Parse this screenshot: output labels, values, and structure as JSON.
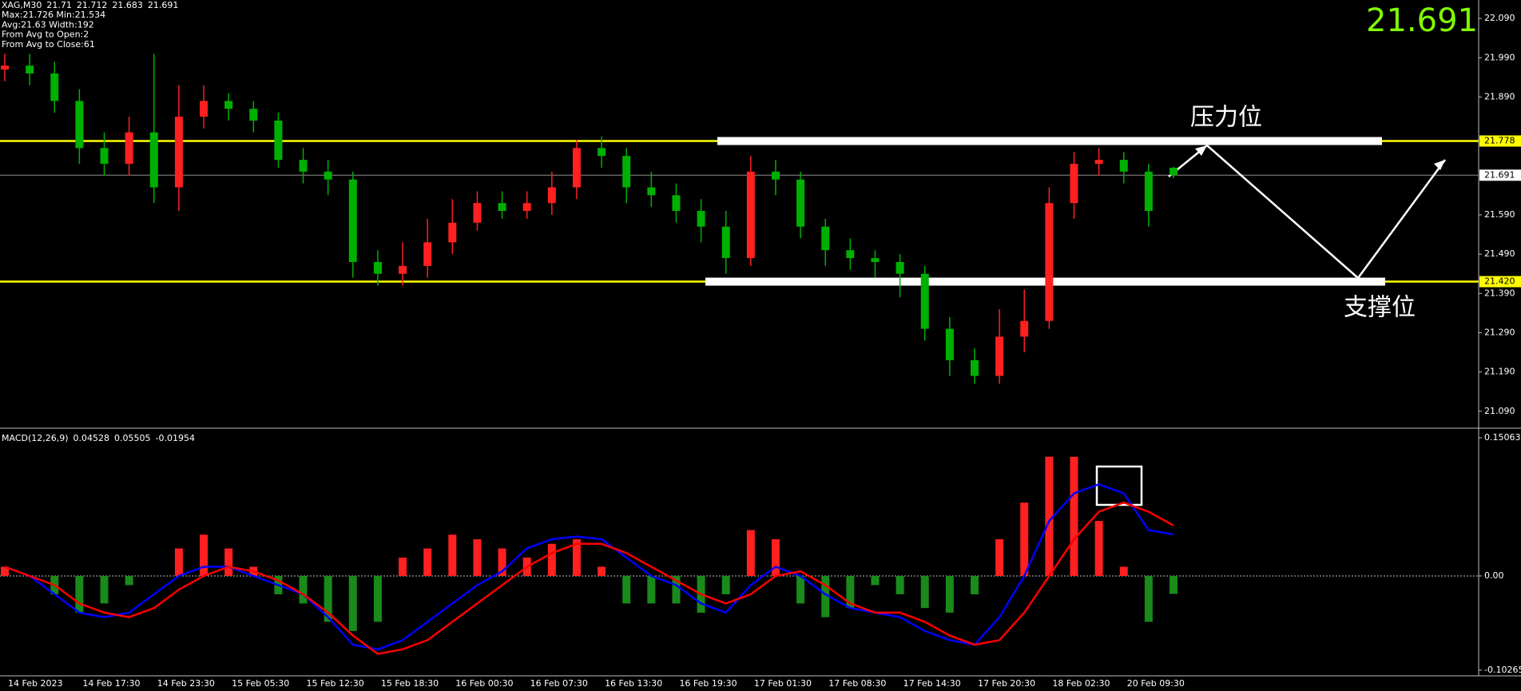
{
  "chart_data": [
    {
      "type": "candlestick",
      "title": "XAG,M30",
      "info": [
        "Max:21.726 Min:21.534",
        "Avg:21.63 Width:192",
        "From Avg to Open:2",
        "From Avg to Close:61"
      ],
      "categories": [
        "14 Feb 2023",
        null,
        null,
        "14 Feb 17:30",
        null,
        null,
        "14 Feb 23:30",
        null,
        null,
        "15 Feb 05:30",
        null,
        null,
        "15 Feb 12:30",
        null,
        null,
        "15 Feb 18:30",
        null,
        null,
        "16 Feb 00:30",
        null,
        null,
        "16 Feb 07:30",
        null,
        null,
        "16 Feb 13:30",
        null,
        null,
        "16 Feb 19:30",
        null,
        null,
        "17 Feb 01:30",
        null,
        null,
        "17 Feb 08:30",
        null,
        null,
        "17 Feb 14:30",
        null,
        null,
        "17 Feb 20:30",
        null,
        null,
        "18 Feb 02:30",
        null,
        null,
        "20 Feb 09:30",
        null,
        null
      ],
      "open": [
        21.96,
        21.97,
        21.95,
        21.88,
        21.76,
        21.72,
        21.8,
        21.66,
        21.84,
        21.88,
        21.86,
        21.83,
        21.73,
        21.7,
        21.68,
        21.47,
        21.44,
        21.46,
        21.52,
        21.57,
        21.62,
        21.6,
        21.62,
        21.66,
        21.76,
        21.74,
        21.66,
        21.64,
        21.6,
        21.56,
        21.48,
        21.7,
        21.68,
        21.56,
        21.5,
        21.48,
        21.47,
        21.44,
        21.3,
        21.22,
        21.18,
        21.28,
        21.32,
        21.62,
        21.72,
        21.73,
        21.7,
        21.71
      ],
      "high": [
        22.0,
        22.0,
        21.98,
        21.91,
        21.8,
        21.84,
        22.0,
        21.92,
        21.92,
        21.9,
        21.88,
        21.85,
        21.76,
        21.73,
        21.7,
        21.5,
        21.52,
        21.58,
        21.63,
        21.65,
        21.65,
        21.65,
        21.7,
        21.78,
        21.79,
        21.76,
        21.7,
        21.67,
        21.63,
        21.6,
        21.74,
        21.73,
        21.7,
        21.58,
        21.53,
        21.5,
        21.49,
        21.46,
        21.33,
        21.25,
        21.35,
        21.4,
        21.66,
        21.75,
        21.76,
        21.75,
        21.72,
        21.712
      ],
      "low": [
        21.93,
        21.92,
        21.85,
        21.72,
        21.69,
        21.69,
        21.62,
        21.6,
        21.81,
        21.83,
        21.8,
        21.71,
        21.67,
        21.64,
        21.43,
        21.41,
        21.41,
        21.43,
        21.49,
        21.55,
        21.58,
        21.58,
        21.59,
        21.63,
        21.71,
        21.62,
        21.61,
        21.57,
        21.52,
        21.44,
        21.46,
        21.64,
        21.53,
        21.46,
        21.45,
        21.43,
        21.38,
        21.27,
        21.18,
        21.16,
        21.16,
        21.24,
        21.3,
        21.58,
        21.69,
        21.67,
        21.56,
        21.683
      ],
      "close": [
        21.97,
        21.95,
        21.88,
        21.76,
        21.72,
        21.8,
        21.66,
        21.84,
        21.88,
        21.86,
        21.83,
        21.73,
        21.7,
        21.68,
        21.47,
        21.44,
        21.46,
        21.52,
        21.57,
        21.62,
        21.6,
        21.62,
        21.66,
        21.76,
        21.74,
        21.66,
        21.64,
        21.6,
        21.56,
        21.48,
        21.7,
        21.68,
        21.56,
        21.5,
        21.48,
        21.47,
        21.44,
        21.3,
        21.22,
        21.18,
        21.28,
        21.32,
        21.62,
        21.72,
        21.73,
        21.7,
        21.6,
        21.691
      ],
      "up_color": "#ff2020",
      "down_color": "#00b000",
      "ylim": [
        21.051,
        22.137
      ],
      "yticks": [
        {
          "value": 22.09,
          "label": "22.090"
        },
        {
          "value": 21.99,
          "label": "21.990"
        },
        {
          "value": 21.89,
          "label": "21.890"
        },
        {
          "value": 21.59,
          "label": "21.590"
        },
        {
          "value": 21.49,
          "label": "21.490"
        },
        {
          "value": 21.39,
          "label": "21.390"
        },
        {
          "value": 21.29,
          "label": "21.290"
        },
        {
          "value": 21.19,
          "label": "21.190"
        },
        {
          "value": 21.09,
          "label": "21.090"
        }
      ],
      "hlines": [
        {
          "value": 21.778,
          "label": "21.778",
          "color": "#ffff00"
        },
        {
          "value": 21.42,
          "label": "21.420",
          "color": "#ffff00"
        }
      ],
      "annotations": [
        "压力位",
        "支撑位"
      ]
    },
    {
      "type": "macd",
      "title": "MACD(12,26,9)",
      "series": [
        {
          "color": "#0000ff",
          "values": [
            0.01,
            0.0,
            -0.02,
            -0.04,
            -0.045,
            -0.04,
            -0.02,
            0.0,
            0.01,
            0.01,
            0.0,
            -0.01,
            -0.02,
            -0.045,
            -0.075,
            -0.08,
            -0.07,
            -0.05,
            -0.03,
            -0.01,
            0.005,
            0.03,
            0.04,
            0.043,
            0.04,
            0.02,
            0.0,
            -0.01,
            -0.03,
            -0.04,
            -0.01,
            0.01,
            0.0,
            -0.02,
            -0.035,
            -0.04,
            -0.045,
            -0.06,
            -0.07,
            -0.075,
            -0.045,
            0.0,
            0.06,
            0.09,
            0.1,
            0.09,
            0.05,
            0.04528
          ]
        },
        {
          "color": "#ff0000",
          "values": [
            0.01,
            0.0,
            -0.01,
            -0.03,
            -0.04,
            -0.045,
            -0.035,
            -0.015,
            0.0,
            0.01,
            0.005,
            -0.005,
            -0.02,
            -0.04,
            -0.065,
            -0.085,
            -0.08,
            -0.07,
            -0.05,
            -0.03,
            -0.01,
            0.01,
            0.025,
            0.035,
            0.035,
            0.025,
            0.01,
            -0.005,
            -0.02,
            -0.03,
            -0.02,
            0.0,
            0.005,
            -0.01,
            -0.03,
            -0.04,
            -0.04,
            -0.05,
            -0.065,
            -0.075,
            -0.07,
            -0.04,
            0.0,
            0.04,
            0.07,
            0.08,
            0.07,
            0.05505
          ]
        }
      ],
      "histogram": {
        "up_color": "#ff2020",
        "down_color": "#1a8a1a",
        "values": [
          0.01,
          0.0,
          -0.02,
          -0.04,
          -0.03,
          -0.01,
          0.0,
          0.03,
          0.045,
          0.03,
          0.01,
          -0.02,
          -0.03,
          -0.05,
          -0.06,
          -0.05,
          0.02,
          0.03,
          0.045,
          0.04,
          0.03,
          0.02,
          0.035,
          0.04,
          0.01,
          -0.03,
          -0.03,
          -0.03,
          -0.04,
          -0.02,
          0.05,
          0.04,
          -0.03,
          -0.045,
          -0.035,
          -0.01,
          -0.02,
          -0.035,
          -0.04,
          -0.02,
          0.04,
          0.08,
          0.13,
          0.13,
          0.06,
          0.01,
          -0.05,
          -0.01954
        ]
      },
      "ylim": [
        -0.1089,
        0.1585
      ],
      "yticks": [
        0.15063,
        {
          "value": 0,
          "label": "0.00"
        },
        -0.10265
      ]
    }
  ]
}
